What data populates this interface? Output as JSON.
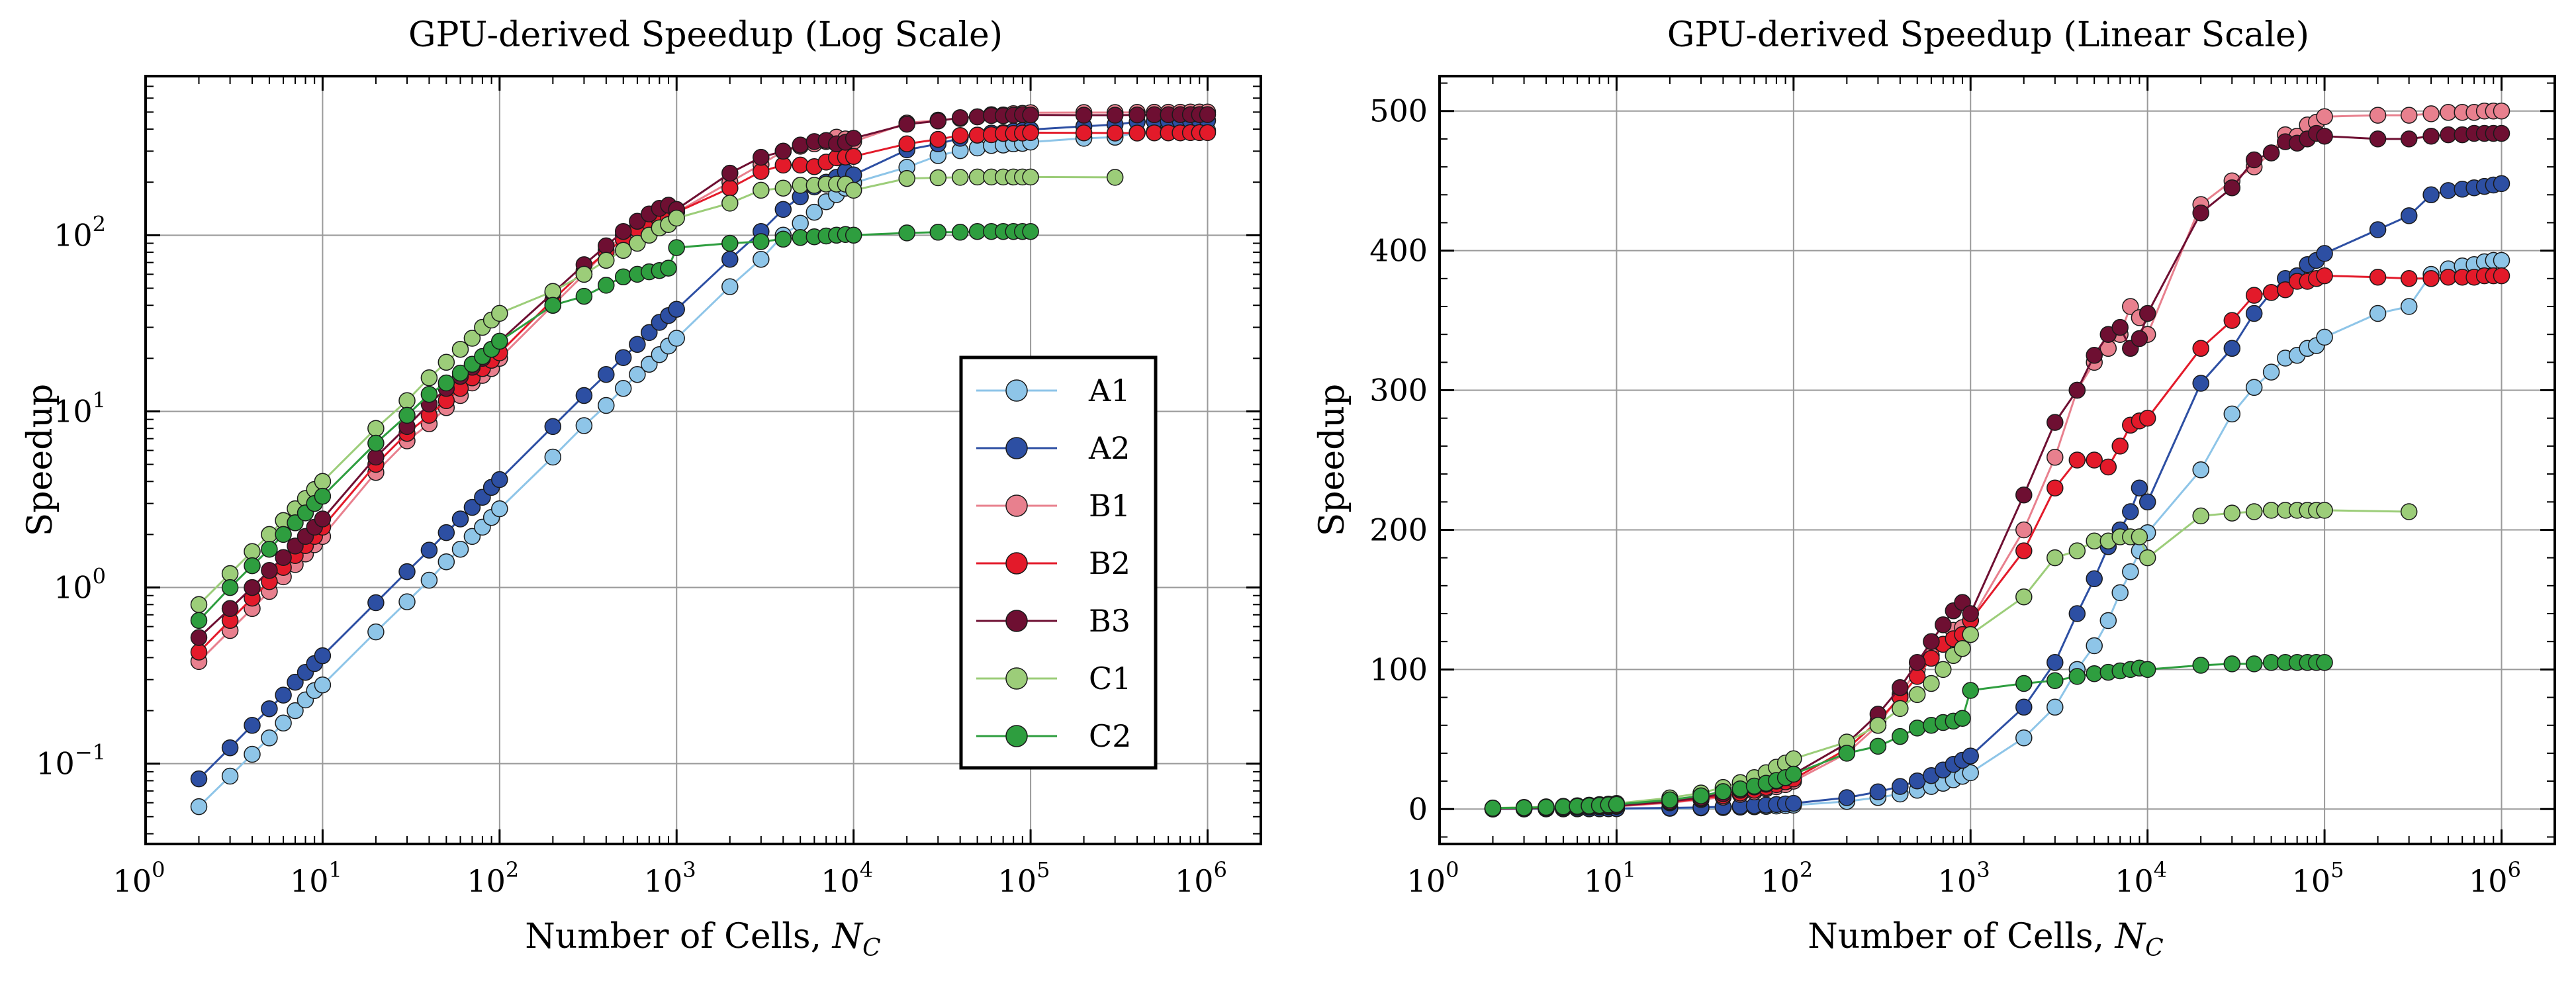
{
  "chart_data": [
    {
      "type": "line",
      "yscale": "log",
      "xscale": "log",
      "title": "GPU-derived Speedup (Log Scale)",
      "xlabel": "Number of Cells, ",
      "xlabel_symbol": "N",
      "xlabel_sub": "C",
      "ylabel": "Speedup",
      "xlim": [
        1,
        2000000
      ],
      "ylim": [
        0.035,
        800
      ],
      "xticks": [
        {
          "base": "10",
          "exp": "0",
          "value": 1
        },
        {
          "base": "10",
          "exp": "1",
          "value": 10
        },
        {
          "base": "10",
          "exp": "2",
          "value": 100
        },
        {
          "base": "10",
          "exp": "3",
          "value": 1000
        },
        {
          "base": "10",
          "exp": "4",
          "value": 10000
        },
        {
          "base": "10",
          "exp": "5",
          "value": 100000
        },
        {
          "base": "10",
          "exp": "6",
          "value": 1000000
        }
      ],
      "yticks": [
        {
          "base": "10",
          "exp": "−1",
          "value": 0.1
        },
        {
          "base": "10",
          "exp": "0",
          "value": 1
        },
        {
          "base": "10",
          "exp": "1",
          "value": 10
        },
        {
          "base": "10",
          "exp": "2",
          "value": 100
        }
      ],
      "grid": true,
      "legend_position": "lower-right"
    },
    {
      "type": "line",
      "yscale": "linear",
      "xscale": "log",
      "title": "GPU-derived Speedup (Linear Scale)",
      "xlabel": "Number of Cells, ",
      "xlabel_symbol": "N",
      "xlabel_sub": "C",
      "ylabel": "Speedup",
      "xlim": [
        1,
        2000000
      ],
      "ylim": [
        -25,
        525
      ],
      "xticks": [
        {
          "base": "10",
          "exp": "0",
          "value": 1
        },
        {
          "base": "10",
          "exp": "1",
          "value": 10
        },
        {
          "base": "10",
          "exp": "2",
          "value": 100
        },
        {
          "base": "10",
          "exp": "3",
          "value": 1000
        },
        {
          "base": "10",
          "exp": "4",
          "value": 10000
        },
        {
          "base": "10",
          "exp": "5",
          "value": 100000
        },
        {
          "base": "10",
          "exp": "6",
          "value": 1000000
        }
      ],
      "yticks": [
        {
          "label": "0",
          "value": 0
        },
        {
          "label": "100",
          "value": 100
        },
        {
          "label": "200",
          "value": 200
        },
        {
          "label": "300",
          "value": 300
        },
        {
          "label": "400",
          "value": 400
        },
        {
          "label": "500",
          "value": 500
        }
      ],
      "grid": true
    }
  ],
  "series": [
    {
      "name": "A1",
      "color": "#8ec5e8",
      "x": [
        2,
        3,
        4,
        5,
        6,
        7,
        8,
        9,
        10,
        20,
        30,
        40,
        50,
        60,
        70,
        80,
        90,
        100,
        200,
        300,
        400,
        500,
        600,
        700,
        800,
        900,
        1000,
        2000,
        3000,
        4000,
        5000,
        6000,
        7000,
        8000,
        9000,
        10000,
        20000,
        30000,
        40000,
        50000,
        60000,
        70000,
        80000,
        90000,
        100000,
        200000,
        300000,
        400000,
        500000,
        600000,
        700000,
        800000,
        900000,
        1000000
      ],
      "y": [
        0.057,
        0.085,
        0.113,
        0.14,
        0.17,
        0.2,
        0.23,
        0.26,
        0.28,
        0.56,
        0.83,
        1.1,
        1.4,
        1.65,
        1.95,
        2.2,
        2.5,
        2.8,
        5.5,
        8.3,
        10.8,
        13.5,
        16.2,
        18.5,
        21,
        23.5,
        26,
        51,
        73,
        100,
        117,
        135,
        155,
        170,
        185,
        198,
        243,
        283,
        302,
        313,
        323,
        325,
        330,
        332,
        338,
        355,
        360,
        383,
        387,
        389,
        390,
        392,
        393,
        393
      ]
    },
    {
      "name": "A2",
      "color": "#2d4fa3",
      "x": [
        2,
        3,
        4,
        5,
        6,
        7,
        8,
        9,
        10,
        20,
        30,
        40,
        50,
        60,
        70,
        80,
        90,
        100,
        200,
        300,
        400,
        500,
        600,
        700,
        800,
        900,
        1000,
        2000,
        3000,
        4000,
        5000,
        6000,
        7000,
        8000,
        9000,
        10000,
        20000,
        30000,
        40000,
        50000,
        60000,
        70000,
        80000,
        90000,
        100000,
        200000,
        300000,
        400000,
        500000,
        600000,
        700000,
        800000,
        900000,
        1000000
      ],
      "y": [
        0.082,
        0.123,
        0.165,
        0.205,
        0.245,
        0.29,
        0.33,
        0.37,
        0.41,
        0.82,
        1.23,
        1.63,
        2.05,
        2.45,
        2.85,
        3.25,
        3.7,
        4.1,
        8.2,
        12.3,
        16.2,
        20.2,
        24,
        28,
        32,
        35,
        38,
        73,
        105,
        140,
        165,
        188,
        200,
        213,
        230,
        220,
        305,
        330,
        355,
        370,
        380,
        382,
        390,
        393,
        398,
        415,
        425,
        440,
        443,
        444,
        445,
        446,
        447,
        448
      ]
    },
    {
      "name": "B1",
      "color": "#e8808e",
      "x": [
        2,
        3,
        4,
        5,
        6,
        7,
        8,
        9,
        10,
        20,
        30,
        40,
        50,
        60,
        70,
        80,
        90,
        100,
        200,
        300,
        400,
        500,
        600,
        700,
        800,
        900,
        1000,
        2000,
        3000,
        4000,
        5000,
        6000,
        7000,
        8000,
        9000,
        10000,
        20000,
        30000,
        40000,
        50000,
        60000,
        70000,
        80000,
        90000,
        100000,
        200000,
        300000,
        400000,
        500000,
        600000,
        700000,
        800000,
        900000,
        1000000
      ],
      "y": [
        0.38,
        0.57,
        0.76,
        0.95,
        1.15,
        1.35,
        1.55,
        1.75,
        1.95,
        4.5,
        6.8,
        8.5,
        10.5,
        12.3,
        14.5,
        16,
        17.5,
        20,
        40,
        60,
        82,
        100,
        110,
        118,
        128,
        130,
        135,
        200,
        252,
        300,
        320,
        330,
        340,
        360,
        352,
        340,
        433,
        450,
        460,
        470,
        483,
        482,
        490,
        492,
        496,
        497,
        497,
        498,
        499,
        499,
        499,
        500,
        500,
        500
      ]
    },
    {
      "name": "B2",
      "color": "#e31a2a",
      "x": [
        2,
        3,
        4,
        5,
        6,
        7,
        8,
        9,
        10,
        20,
        30,
        40,
        50,
        60,
        70,
        80,
        90,
        100,
        200,
        300,
        400,
        500,
        600,
        700,
        800,
        900,
        1000,
        2000,
        3000,
        4000,
        5000,
        6000,
        7000,
        8000,
        9000,
        10000,
        20000,
        30000,
        40000,
        50000,
        60000,
        70000,
        80000,
        90000,
        100000,
        200000,
        300000,
        400000,
        500000,
        600000,
        700000,
        800000,
        900000,
        1000000
      ],
      "y": [
        0.43,
        0.65,
        0.87,
        1.08,
        1.3,
        1.52,
        1.73,
        1.95,
        2.2,
        5.0,
        7.5,
        9.5,
        11.5,
        13.5,
        15.5,
        17.5,
        19.5,
        21.5,
        43,
        63,
        80,
        95,
        108,
        118,
        122,
        125,
        135,
        185,
        230,
        250,
        250,
        245,
        260,
        275,
        278,
        280,
        330,
        350,
        368,
        370,
        372,
        378,
        378,
        380,
        382,
        381,
        380,
        380,
        381,
        381,
        381,
        382,
        382,
        382
      ]
    },
    {
      "name": "B3",
      "color": "#6e0f32",
      "x": [
        2,
        3,
        4,
        5,
        6,
        7,
        8,
        9,
        10,
        20,
        30,
        40,
        50,
        60,
        70,
        80,
        90,
        100,
        200,
        300,
        400,
        500,
        600,
        700,
        800,
        900,
        1000,
        2000,
        3000,
        4000,
        5000,
        6000,
        7000,
        8000,
        9000,
        10000,
        20000,
        30000,
        40000,
        50000,
        60000,
        70000,
        80000,
        90000,
        100000,
        200000,
        300000,
        400000,
        500000,
        600000,
        700000,
        800000,
        900000,
        1000000
      ],
      "y": [
        0.52,
        0.76,
        1.0,
        1.25,
        1.48,
        1.72,
        1.95,
        2.2,
        2.45,
        5.5,
        8.2,
        11,
        13.5,
        15.8,
        17.8,
        20,
        22.5,
        25,
        47,
        68,
        87,
        105,
        120,
        132,
        142,
        148,
        140,
        225,
        277,
        300,
        325,
        340,
        345,
        330,
        337,
        355,
        427,
        445,
        465,
        470,
        478,
        477,
        480,
        484,
        482,
        480,
        480,
        482,
        483,
        483,
        484,
        484,
        484,
        484
      ]
    },
    {
      "name": "C1",
      "color": "#9ccd79",
      "x": [
        2,
        3,
        4,
        5,
        6,
        7,
        8,
        9,
        10,
        20,
        30,
        40,
        50,
        60,
        70,
        80,
        90,
        100,
        200,
        300,
        400,
        500,
        600,
        700,
        800,
        900,
        1000,
        2000,
        3000,
        4000,
        5000,
        6000,
        7000,
        8000,
        9000,
        10000,
        20000,
        30000,
        40000,
        50000,
        60000,
        70000,
        80000,
        90000,
        100000,
        300000
      ],
      "y": [
        0.8,
        1.2,
        1.6,
        2.0,
        2.4,
        2.8,
        3.2,
        3.6,
        4.0,
        8.0,
        11.5,
        15.5,
        19,
        22.5,
        26,
        30,
        33,
        36,
        48,
        60,
        72,
        82,
        90,
        100,
        110,
        115,
        125,
        152,
        180,
        185,
        192,
        192,
        195,
        195,
        195,
        180,
        210,
        212,
        213,
        214,
        214,
        214,
        214,
        214,
        214,
        213
      ]
    },
    {
      "name": "C2",
      "color": "#2e9e3f",
      "x": [
        2,
        3,
        4,
        5,
        6,
        7,
        8,
        9,
        10,
        20,
        30,
        40,
        50,
        60,
        70,
        80,
        90,
        100,
        200,
        300,
        400,
        500,
        600,
        700,
        800,
        900,
        1000,
        2000,
        3000,
        4000,
        5000,
        6000,
        7000,
        8000,
        9000,
        10000,
        20000,
        30000,
        40000,
        50000,
        60000,
        70000,
        80000,
        90000,
        100000
      ],
      "y": [
        0.65,
        1.0,
        1.33,
        1.65,
        2.0,
        2.33,
        2.65,
        3.0,
        3.3,
        6.6,
        9.5,
        12.5,
        14.5,
        16.5,
        18.5,
        20.5,
        22.5,
        25,
        40,
        45,
        52,
        58,
        60,
        62,
        63,
        65,
        85,
        90,
        92,
        95,
        97,
        98,
        99,
        100,
        101,
        100,
        103,
        104,
        104,
        105,
        105,
        105,
        105,
        105,
        105
      ]
    }
  ]
}
